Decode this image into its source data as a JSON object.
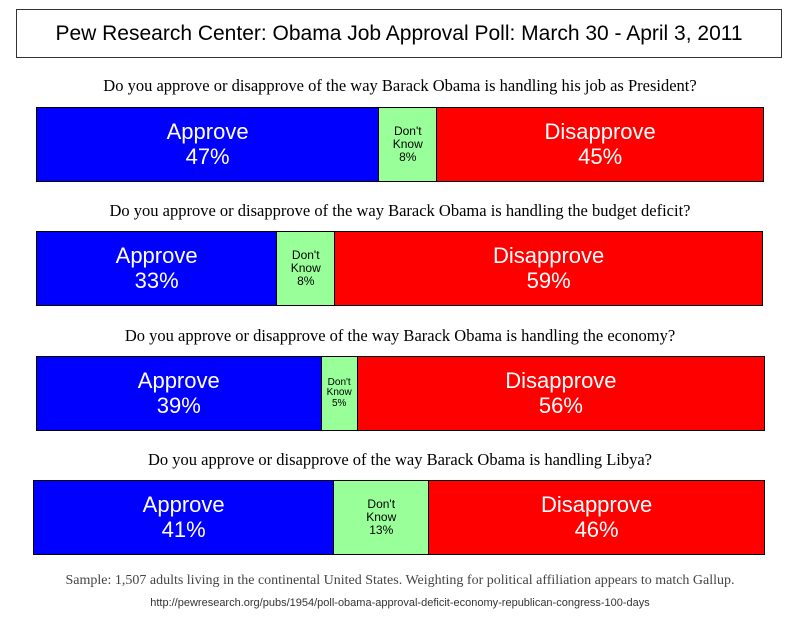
{
  "chart_data": {
    "type": "bar",
    "title": "Pew Research Center: Obama Job Approval Poll: March 30 - April 3, 2011",
    "colors": {
      "Approve": "#0000ff",
      "Don't Know": "#99ff99",
      "Disapprove": "#ff0000"
    },
    "bars": [
      {
        "question": "Do you approve or disapprove of the way Barack Obama is handling his job as President?",
        "segments": [
          {
            "label": "Approve",
            "value": "47%",
            "pct": 47
          },
          {
            "label_lines": [
              "Don't",
              "Know"
            ],
            "value": "8%",
            "pct": 8
          },
          {
            "label": "Disapprove",
            "value": "45%",
            "pct": 45
          }
        ]
      },
      {
        "question": "Do you approve or disapprove of the way Barack Obama is handling the budget deficit?",
        "segments": [
          {
            "label": "Approve",
            "value": "33%",
            "pct": 33
          },
          {
            "label_lines": [
              "Don't",
              "Know"
            ],
            "value": "8%",
            "pct": 8
          },
          {
            "label": "Disapprove",
            "value": "59%",
            "pct": 59
          }
        ]
      },
      {
        "question": "Do you approve or disapprove of the way Barack Obama is handling the economy?",
        "segments": [
          {
            "label": "Approve",
            "value": "39%",
            "pct": 39
          },
          {
            "label_lines": [
              "Don't",
              "Know"
            ],
            "value": "5%",
            "pct": 5
          },
          {
            "label": "Disapprove",
            "value": "56%",
            "pct": 56
          }
        ]
      },
      {
        "question": "Do you approve or disapprove of the way Barack Obama is handling Libya?",
        "segments": [
          {
            "label": "Approve",
            "value": "41%",
            "pct": 41
          },
          {
            "label_lines": [
              "Don't",
              "Know"
            ],
            "value": "13%",
            "pct": 13
          },
          {
            "label": "Disapprove",
            "value": "46%",
            "pct": 46
          }
        ]
      }
    ],
    "note": "Sample: 1,507 adults living in the continental United States. Weighting for political affiliation appears to match Gallup.",
    "source_url": "http://pewresearch.org/pubs/1954/poll-obama-approval-deficit-economy-republican-congress-100-days"
  }
}
